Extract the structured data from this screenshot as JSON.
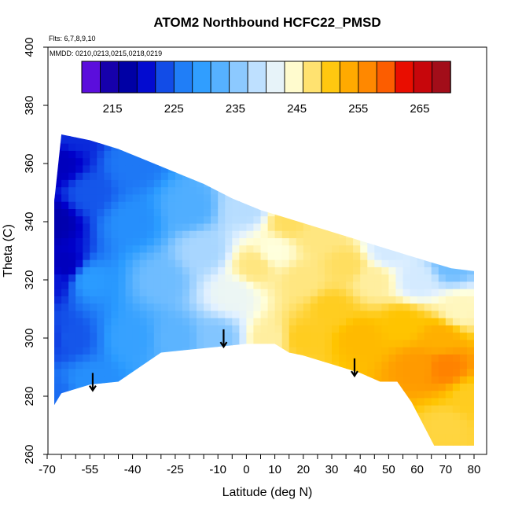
{
  "chart_data": {
    "type": "heatmap",
    "title": "ATOM2 Northbound HCFC22_PMSD",
    "subtitle_flights": "Flts: 6,7,8,9,10",
    "subtitle_dates": "MMDD: 0210,0213,0215,0218,0219",
    "xlabel": "Latitude (deg N)",
    "ylabel": "Theta (C)",
    "xlim": [
      -70,
      80
    ],
    "ylim": [
      260,
      400
    ],
    "x_ticks": [
      -70,
      -55,
      -40,
      -25,
      -10,
      0,
      10,
      20,
      30,
      40,
      50,
      60,
      70,
      80
    ],
    "x_minor_ticks": [
      -65,
      -60,
      -50,
      -45,
      -35,
      -30,
      -20,
      -15,
      -5,
      5,
      15,
      25,
      35,
      45,
      55,
      65,
      75
    ],
    "y_ticks": [
      260,
      280,
      300,
      320,
      340,
      360,
      380,
      400
    ],
    "colorbar": {
      "ticks": [
        215,
        225,
        235,
        245,
        255,
        265
      ],
      "min": 210,
      "max": 270,
      "bins": 20,
      "stops": [
        {
          "v": 210,
          "c": "#8a1cf0"
        },
        {
          "v": 213,
          "c": "#2c00c8"
        },
        {
          "v": 216,
          "c": "#00008e"
        },
        {
          "v": 220,
          "c": "#0000cc"
        },
        {
          "v": 225,
          "c": "#1a6cf2"
        },
        {
          "v": 229,
          "c": "#2a9bff"
        },
        {
          "v": 233,
          "c": "#5cb4ff"
        },
        {
          "v": 237,
          "c": "#a8d6ff"
        },
        {
          "v": 241,
          "c": "#e2f1ff"
        },
        {
          "v": 244,
          "c": "#ffffdd"
        },
        {
          "v": 247,
          "c": "#ffe680"
        },
        {
          "v": 251,
          "c": "#ffc400"
        },
        {
          "v": 255,
          "c": "#ff9a00"
        },
        {
          "v": 259,
          "c": "#ff6a00"
        },
        {
          "v": 263,
          "c": "#e60000"
        },
        {
          "v": 270,
          "c": "#901020"
        }
      ]
    },
    "domain_boundary": {
      "top": [
        [
          -67.5,
          347
        ],
        [
          -65,
          370
        ],
        [
          -55,
          368
        ],
        [
          -45,
          365
        ],
        [
          -35,
          361
        ],
        [
          -25,
          357
        ],
        [
          -15,
          353
        ],
        [
          -5,
          348
        ],
        [
          5,
          344
        ],
        [
          15,
          341
        ],
        [
          25,
          338
        ],
        [
          35,
          335
        ],
        [
          45,
          332
        ],
        [
          55,
          329
        ],
        [
          65,
          326
        ],
        [
          72,
          324
        ],
        [
          80,
          323
        ]
      ],
      "bottom": [
        [
          80,
          263
        ],
        [
          66,
          263
        ],
        [
          58,
          278
        ],
        [
          53,
          285
        ],
        [
          47,
          285
        ],
        [
          40,
          288
        ],
        [
          30,
          291
        ],
        [
          20,
          294
        ],
        [
          15,
          295
        ],
        [
          10,
          298
        ],
        [
          0,
          298
        ],
        [
          -10,
          297
        ],
        [
          -20,
          296
        ],
        [
          -30,
          295
        ],
        [
          -45,
          285
        ],
        [
          -55,
          284
        ],
        [
          -65,
          281
        ],
        [
          -67.5,
          277
        ]
      ]
    },
    "arrows": [
      {
        "lat": -54,
        "theta_from": 288,
        "theta_to": 282
      },
      {
        "lat": -8,
        "theta_from": 303,
        "theta_to": 297
      },
      {
        "lat": 38,
        "theta_from": 293,
        "theta_to": 287
      }
    ],
    "field_anchors": [
      {
        "x": -68,
        "y": 280,
        "v": 225
      },
      {
        "x": -68,
        "y": 300,
        "v": 223
      },
      {
        "x": -68,
        "y": 320,
        "v": 221
      },
      {
        "x": -68,
        "y": 340,
        "v": 218
      },
      {
        "x": -66,
        "y": 360,
        "v": 219
      },
      {
        "x": -64,
        "y": 325,
        "v": 219
      },
      {
        "x": -62,
        "y": 300,
        "v": 224
      },
      {
        "x": -60,
        "y": 370,
        "v": 222
      },
      {
        "x": -55,
        "y": 285,
        "v": 228
      },
      {
        "x": -55,
        "y": 320,
        "v": 229
      },
      {
        "x": -55,
        "y": 350,
        "v": 224
      },
      {
        "x": -40,
        "y": 300,
        "v": 230
      },
      {
        "x": -40,
        "y": 340,
        "v": 228
      },
      {
        "x": -40,
        "y": 360,
        "v": 226
      },
      {
        "x": -30,
        "y": 320,
        "v": 234
      },
      {
        "x": -25,
        "y": 300,
        "v": 233
      },
      {
        "x": -20,
        "y": 345,
        "v": 232
      },
      {
        "x": -15,
        "y": 330,
        "v": 237
      },
      {
        "x": -10,
        "y": 300,
        "v": 235
      },
      {
        "x": -5,
        "y": 315,
        "v": 242
      },
      {
        "x": 0,
        "y": 345,
        "v": 238
      },
      {
        "x": 3,
        "y": 325,
        "v": 247
      },
      {
        "x": 8,
        "y": 300,
        "v": 246
      },
      {
        "x": 10,
        "y": 330,
        "v": 244
      },
      {
        "x": 15,
        "y": 340,
        "v": 248
      },
      {
        "x": 20,
        "y": 320,
        "v": 247
      },
      {
        "x": 20,
        "y": 300,
        "v": 250
      },
      {
        "x": 25,
        "y": 335,
        "v": 247
      },
      {
        "x": 30,
        "y": 310,
        "v": 250
      },
      {
        "x": 35,
        "y": 325,
        "v": 248
      },
      {
        "x": 40,
        "y": 300,
        "v": 252
      },
      {
        "x": 45,
        "y": 320,
        "v": 246
      },
      {
        "x": 50,
        "y": 330,
        "v": 240
      },
      {
        "x": 55,
        "y": 305,
        "v": 251
      },
      {
        "x": 60,
        "y": 290,
        "v": 255
      },
      {
        "x": 60,
        "y": 320,
        "v": 240
      },
      {
        "x": 68,
        "y": 300,
        "v": 253
      },
      {
        "x": 70,
        "y": 290,
        "v": 257
      },
      {
        "x": 72,
        "y": 325,
        "v": 234
      },
      {
        "x": 75,
        "y": 310,
        "v": 245
      },
      {
        "x": 78,
        "y": 280,
        "v": 250
      },
      {
        "x": 70,
        "y": 270,
        "v": 249
      }
    ]
  }
}
